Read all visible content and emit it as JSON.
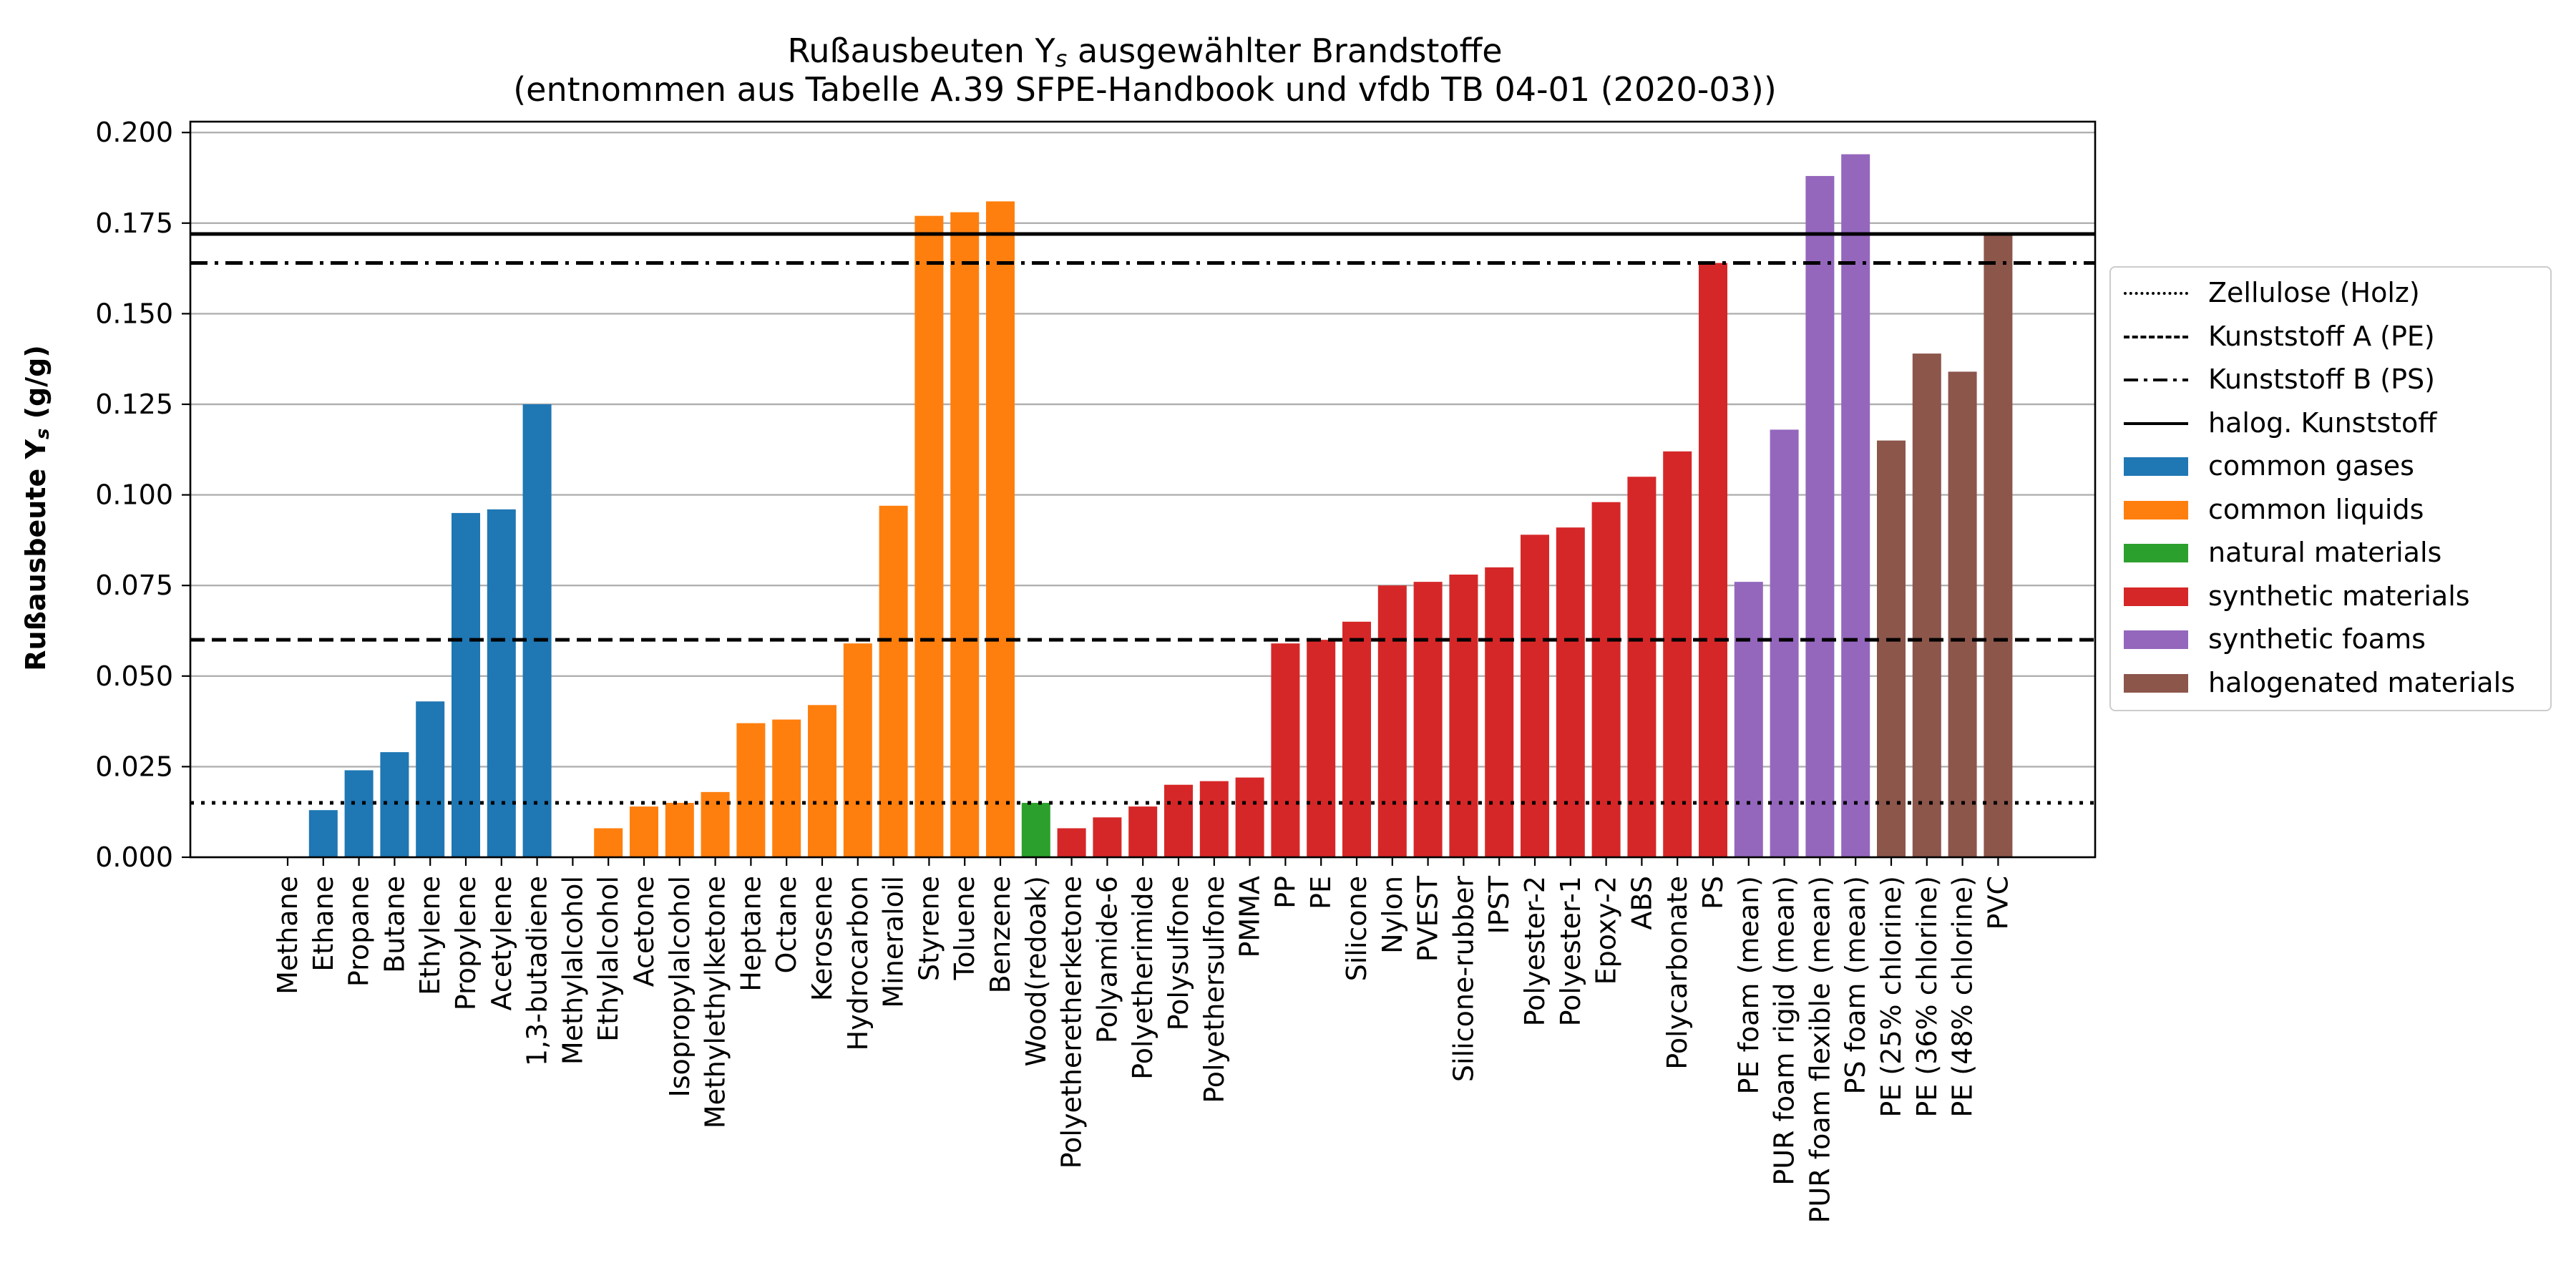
{
  "chart_data": {
    "type": "bar",
    "title_line1_pre": "Rußausbeuten Y",
    "title_line1_sub": "s",
    "title_line1_post": " ausgewählter Brandstoffe",
    "title_line2": "(entnommen aus Tabelle A.39 SFPE-Handbook und vfdb TB 04-01 (2020-03))",
    "ylabel_pre": "Rußausbeute Y",
    "ylabel_sub": "s",
    "ylabel_post": " (g/g)",
    "xlabel": "",
    "ylim": [
      0,
      0.203
    ],
    "yticks": [
      "0.000",
      "0.025",
      "0.050",
      "0.075",
      "0.100",
      "0.125",
      "0.150",
      "0.175",
      "0.200"
    ],
    "grid": "horizontal",
    "legend_position": "right",
    "categories": [
      "Methane",
      "Ethane",
      "Propane",
      "Butane",
      "Ethylene",
      "Propylene",
      "Acetylene",
      "1,3-butadiene",
      "Methylalcohol",
      "Ethylalcohol",
      "Acetone",
      "Isopropylalcohol",
      "Methylethylketone",
      "Heptane",
      "Octane",
      "Kerosene",
      "Hydrocarbon",
      "Mineraloil",
      "Styrene",
      "Toluene",
      "Benzene",
      "Wood(redoak)",
      "Polyetheretherketone",
      "Polyamide-6",
      "Polyetherimide",
      "Polysulfone",
      "Polyethersulfone",
      "PMMA",
      "PP",
      "PE",
      "Silicone",
      "Nylon",
      "PVEST",
      "Silicone-rubber",
      "IPST",
      "Polyester-2",
      "Polyester-1",
      "Epoxy-2",
      "ABS",
      "Polycarbonate",
      "PS",
      "PE foam (mean)",
      "PUR foam rigid (mean)",
      "PUR foam flexible (mean)",
      "PS foam (mean)",
      "PE (25% chlorine)",
      "PE (36% chlorine)",
      "PE (48% chlorine)",
      "PVC"
    ],
    "values": [
      0.0,
      0.013,
      0.024,
      0.029,
      0.043,
      0.095,
      0.096,
      0.125,
      0.0,
      0.008,
      0.014,
      0.015,
      0.018,
      0.037,
      0.038,
      0.042,
      0.059,
      0.097,
      0.177,
      0.178,
      0.181,
      0.015,
      0.008,
      0.011,
      0.014,
      0.02,
      0.021,
      0.022,
      0.059,
      0.06,
      0.065,
      0.075,
      0.076,
      0.078,
      0.08,
      0.089,
      0.091,
      0.098,
      0.105,
      0.112,
      0.164,
      0.076,
      0.118,
      0.188,
      0.194,
      0.115,
      0.139,
      0.134,
      0.172
    ],
    "groups": [
      "common gases",
      "common gases",
      "common gases",
      "common gases",
      "common gases",
      "common gases",
      "common gases",
      "common gases",
      "common liquids",
      "common liquids",
      "common liquids",
      "common liquids",
      "common liquids",
      "common liquids",
      "common liquids",
      "common liquids",
      "common liquids",
      "common liquids",
      "common liquids",
      "common liquids",
      "common liquids",
      "natural materials",
      "synthetic materials",
      "synthetic materials",
      "synthetic materials",
      "synthetic materials",
      "synthetic materials",
      "synthetic materials",
      "synthetic materials",
      "synthetic materials",
      "synthetic materials",
      "synthetic materials",
      "synthetic materials",
      "synthetic materials",
      "synthetic materials",
      "synthetic materials",
      "synthetic materials",
      "synthetic materials",
      "synthetic materials",
      "synthetic materials",
      "synthetic materials",
      "synthetic foams",
      "synthetic foams",
      "synthetic foams",
      "synthetic foams",
      "halogenated materials",
      "halogenated materials",
      "halogenated materials",
      "halogenated materials"
    ],
    "group_colors": {
      "common gases": "#1f77b4",
      "common liquids": "#ff7f0e",
      "natural materials": "#2ca02c",
      "synthetic materials": "#d62728",
      "synthetic foams": "#9467bd",
      "halogenated materials": "#8c564b"
    },
    "reference_lines": [
      {
        "name": "Zellulose (Holz)",
        "value": 0.015,
        "style": "dotted"
      },
      {
        "name": "Kunststoff A (PE)",
        "value": 0.06,
        "style": "dashed"
      },
      {
        "name": "Kunststoff B (PS)",
        "value": 0.164,
        "style": "dashdot"
      },
      {
        "name": "halog. Kunststoff",
        "value": 0.172,
        "style": "solid"
      }
    ],
    "legend": [
      {
        "label": "Zellulose (Holz)",
        "kind": "line",
        "style": "dotted"
      },
      {
        "label": "Kunststoff A (PE)",
        "kind": "line",
        "style": "dashed"
      },
      {
        "label": "Kunststoff B (PS)",
        "kind": "line",
        "style": "dashdot"
      },
      {
        "label": "halog. Kunststoff",
        "kind": "line",
        "style": "solid"
      },
      {
        "label": "common gases",
        "kind": "patch",
        "color": "#1f77b4"
      },
      {
        "label": "common liquids",
        "kind": "patch",
        "color": "#ff7f0e"
      },
      {
        "label": "natural materials",
        "kind": "patch",
        "color": "#2ca02c"
      },
      {
        "label": "synthetic materials",
        "kind": "patch",
        "color": "#d62728"
      },
      {
        "label": "synthetic foams",
        "kind": "patch",
        "color": "#9467bd"
      },
      {
        "label": "halogenated materials",
        "kind": "patch",
        "color": "#8c564b"
      }
    ]
  }
}
